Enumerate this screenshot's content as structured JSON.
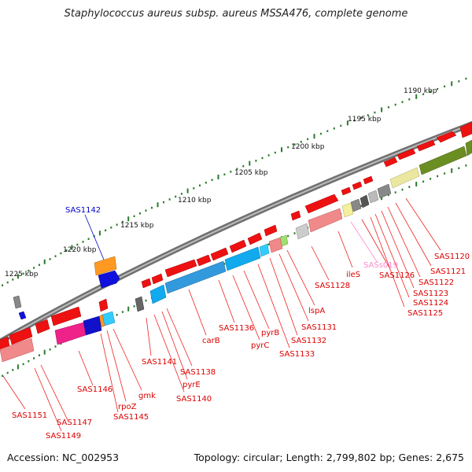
{
  "title": "Staphylococcus aureus subsp. aureus MSSA476, complete genome",
  "footer": {
    "accession": "Accession: NC_002953",
    "summary": "Topology: circular; Length: 2,799,802 bp; Genes: 2,675"
  },
  "colors": {
    "backbone": "#808080",
    "gene_label": "#dd0000",
    "highlight_label": "#0000cc",
    "pink_label": "#ff88cc",
    "tick": "#2a7a2a"
  },
  "scale_labels": [
    "1190 kbp",
    "1195 kbp",
    "1200 kbp",
    "1205 kbp",
    "1210 kbp",
    "1215 kbp",
    "1220 kbp",
    "1225 kbp"
  ],
  "genes": [
    "SAS1120",
    "SAS1121",
    "SAS1122",
    "SAS1123",
    "SAS1124",
    "SAS1125",
    "SAS1126",
    "SASs019",
    "ileS",
    "SAS1128",
    "lspA",
    "SAS1131",
    "SAS1132",
    "SAS1133",
    "pyrC",
    "pyrB",
    "SAS1136",
    "carB",
    "SAS1138",
    "pyrE",
    "SAS1140",
    "SAS1141",
    "SAS1142",
    "gmk",
    "rpoZ",
    "SAS1145",
    "SAS1146",
    "SAS1147",
    "SAS1149",
    "SAS1151"
  ]
}
